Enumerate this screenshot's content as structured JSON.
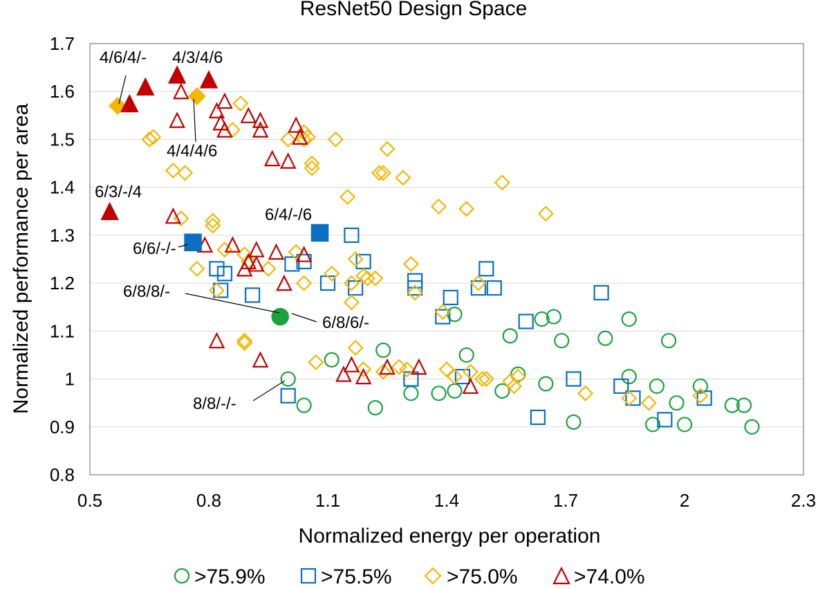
{
  "chart_data": {
    "type": "scatter",
    "title": "ResNet50 Design Space",
    "xlabel": "Normalized energy per operation",
    "ylabel": "Normalized performance per area",
    "xlim": [
      0.5,
      2.3
    ],
    "ylim": [
      0.8,
      1.7
    ],
    "xticks": [
      "0.5",
      "0.8",
      "1.1",
      "1.4",
      "1.7",
      "2",
      "2.3"
    ],
    "yticks": [
      "0.8",
      "0.9",
      "1",
      "1.1",
      "1.2",
      "1.3",
      "1.4",
      "1.5",
      "1.6",
      "1.7"
    ],
    "grid": "horizontal",
    "legend_position": "bottom",
    "colors": {
      "green": "#1aa33c",
      "blue": "#0a6fc2",
      "gold": "#f2b705",
      "red": "#c00000"
    },
    "series": [
      {
        "name": ">75.9%",
        "marker": "circle",
        "color": "#1aa33c",
        "points": [
          [
            1.0,
            1.0
          ],
          [
            1.04,
            0.945
          ],
          [
            1.11,
            1.04
          ],
          [
            1.22,
            0.94
          ],
          [
            1.24,
            1.06
          ],
          [
            1.31,
            0.97
          ],
          [
            1.38,
            0.97
          ],
          [
            1.42,
            0.975
          ],
          [
            1.42,
            1.135
          ],
          [
            1.45,
            1.05
          ],
          [
            1.54,
            0.975
          ],
          [
            1.56,
            1.09
          ],
          [
            1.58,
            1.01
          ],
          [
            1.64,
            1.125
          ],
          [
            1.65,
            0.99
          ],
          [
            1.67,
            1.13
          ],
          [
            1.69,
            1.08
          ],
          [
            1.72,
            0.91
          ],
          [
            1.8,
            1.085
          ],
          [
            1.86,
            1.005
          ],
          [
            1.86,
            1.125
          ],
          [
            1.92,
            0.905
          ],
          [
            1.93,
            0.985
          ],
          [
            1.96,
            1.08
          ],
          [
            1.98,
            0.95
          ],
          [
            2.0,
            0.905
          ],
          [
            2.04,
            0.985
          ],
          [
            2.12,
            0.945
          ],
          [
            2.15,
            0.945
          ],
          [
            2.17,
            0.9
          ]
        ],
        "filled": [
          [
            0.98,
            1.13
          ]
        ]
      },
      {
        "name": ">75.5%",
        "marker": "square",
        "color": "#0a6fc2",
        "points": [
          [
            0.82,
            1.23
          ],
          [
            0.83,
            1.185
          ],
          [
            0.84,
            1.22
          ],
          [
            0.91,
            1.175
          ],
          [
            1.0,
            0.965
          ],
          [
            1.01,
            1.24
          ],
          [
            1.04,
            1.245
          ],
          [
            1.1,
            1.2
          ],
          [
            1.16,
            1.3
          ],
          [
            1.17,
            1.19
          ],
          [
            1.19,
            1.245
          ],
          [
            1.32,
            1.19
          ],
          [
            1.32,
            1.205
          ],
          [
            1.31,
            1.0
          ],
          [
            1.39,
            1.13
          ],
          [
            1.41,
            1.17
          ],
          [
            1.44,
            1.005
          ],
          [
            1.48,
            1.19
          ],
          [
            1.5,
            1.23
          ],
          [
            1.52,
            1.19
          ],
          [
            1.6,
            1.12
          ],
          [
            1.63,
            0.92
          ],
          [
            1.72,
            1.0
          ],
          [
            1.79,
            1.18
          ],
          [
            1.84,
            0.985
          ],
          [
            1.87,
            0.96
          ],
          [
            1.95,
            0.915
          ],
          [
            2.05,
            0.96
          ]
        ],
        "filled": [
          [
            0.76,
            1.285
          ],
          [
            1.08,
            1.305
          ]
        ]
      },
      {
        "name": ">75.0%",
        "marker": "diamond",
        "color": "#f2b705",
        "points": [
          [
            0.65,
            1.5
          ],
          [
            0.66,
            1.505
          ],
          [
            0.71,
            1.435
          ],
          [
            0.73,
            1.335
          ],
          [
            0.74,
            1.43
          ],
          [
            0.77,
            1.23
          ],
          [
            0.81,
            1.32
          ],
          [
            0.81,
            1.33
          ],
          [
            0.82,
            1.185
          ],
          [
            0.84,
            1.27
          ],
          [
            0.86,
            1.52
          ],
          [
            0.88,
            1.575
          ],
          [
            0.89,
            1.08
          ],
          [
            0.89,
            1.075
          ],
          [
            0.89,
            1.26
          ],
          [
            0.9,
            1.245
          ],
          [
            0.95,
            1.23
          ],
          [
            1.0,
            1.5
          ],
          [
            1.02,
            1.265
          ],
          [
            1.04,
            1.5
          ],
          [
            1.04,
            1.515
          ],
          [
            1.04,
            1.2
          ],
          [
            1.05,
            1.505
          ],
          [
            1.06,
            1.44
          ],
          [
            1.06,
            1.45
          ],
          [
            1.07,
            1.035
          ],
          [
            1.11,
            1.22
          ],
          [
            1.12,
            1.5
          ],
          [
            1.15,
            1.38
          ],
          [
            1.16,
            1.2
          ],
          [
            1.16,
            1.16
          ],
          [
            1.17,
            1.25
          ],
          [
            1.17,
            1.065
          ],
          [
            1.19,
            1.02
          ],
          [
            1.19,
            1.215
          ],
          [
            1.2,
            1.21
          ],
          [
            1.22,
            1.21
          ],
          [
            1.23,
            1.43
          ],
          [
            1.24,
            1.43
          ],
          [
            1.24,
            1.015
          ],
          [
            1.25,
            1.48
          ],
          [
            1.28,
            1.025
          ],
          [
            1.29,
            1.42
          ],
          [
            1.3,
            1.02
          ],
          [
            1.31,
            1.24
          ],
          [
            1.32,
            1.18
          ],
          [
            1.38,
            1.36
          ],
          [
            1.39,
            1.14
          ],
          [
            1.4,
            1.02
          ],
          [
            1.42,
            1.005
          ],
          [
            1.45,
            1.355
          ],
          [
            1.46,
            1.015
          ],
          [
            1.48,
            1.2
          ],
          [
            1.49,
            1.0
          ],
          [
            1.5,
            1.0
          ],
          [
            1.54,
            1.41
          ],
          [
            1.56,
            0.995
          ],
          [
            1.57,
            0.985
          ],
          [
            1.58,
            1.005
          ],
          [
            1.65,
            1.345
          ],
          [
            1.75,
            0.97
          ],
          [
            1.86,
            0.96
          ],
          [
            1.91,
            0.95
          ],
          [
            2.04,
            0.965
          ]
        ],
        "filled": [
          [
            0.57,
            1.57
          ],
          [
            0.77,
            1.59
          ]
        ]
      },
      {
        "name": ">74.0%",
        "marker": "triangle",
        "color": "#c00000",
        "points": [
          [
            0.71,
            1.34
          ],
          [
            0.72,
            1.54
          ],
          [
            0.73,
            1.6
          ],
          [
            0.79,
            1.28
          ],
          [
            0.82,
            1.08
          ],
          [
            0.82,
            1.56
          ],
          [
            0.83,
            1.535
          ],
          [
            0.84,
            1.52
          ],
          [
            0.84,
            1.58
          ],
          [
            0.86,
            1.28
          ],
          [
            0.89,
            1.23
          ],
          [
            0.9,
            1.55
          ],
          [
            0.9,
            1.245
          ],
          [
            0.92,
            1.27
          ],
          [
            0.92,
            1.24
          ],
          [
            0.93,
            1.54
          ],
          [
            0.93,
            1.52
          ],
          [
            0.93,
            1.04
          ],
          [
            0.96,
            1.46
          ],
          [
            0.97,
            1.265
          ],
          [
            0.99,
            1.2
          ],
          [
            1.0,
            1.455
          ],
          [
            1.02,
            1.53
          ],
          [
            1.03,
            1.505
          ],
          [
            1.04,
            1.26
          ],
          [
            1.14,
            1.01
          ],
          [
            1.16,
            1.03
          ],
          [
            1.19,
            1.005
          ],
          [
            1.25,
            1.025
          ],
          [
            1.33,
            1.025
          ],
          [
            1.46,
            0.985
          ]
        ],
        "filled": [
          [
            0.55,
            1.35
          ],
          [
            0.6,
            1.575
          ],
          [
            0.64,
            1.61
          ],
          [
            0.72,
            1.635
          ],
          [
            0.8,
            1.625
          ]
        ]
      }
    ],
    "annotations": [
      {
        "text": "4/6/4/-",
        "point": [
          0.57,
          1.57
        ]
      },
      {
        "text": "4/3/4/6",
        "point": [
          0.72,
          1.635
        ]
      },
      {
        "text": "4/4/4/6",
        "point": [
          0.77,
          1.59
        ]
      },
      {
        "text": "6/3/-/4",
        "point": [
          0.55,
          1.35
        ]
      },
      {
        "text": "6/4/-/6",
        "point": [
          1.08,
          1.305
        ]
      },
      {
        "text": "6/6/-/-",
        "point": [
          0.76,
          1.285
        ]
      },
      {
        "text": "6/8/8/-",
        "point": [
          0.98,
          1.13
        ]
      },
      {
        "text": "6/8/6/-",
        "point": [
          0.98,
          1.13
        ]
      },
      {
        "text": "8/8/-/-",
        "point": [
          1.0,
          1.0
        ]
      }
    ]
  }
}
